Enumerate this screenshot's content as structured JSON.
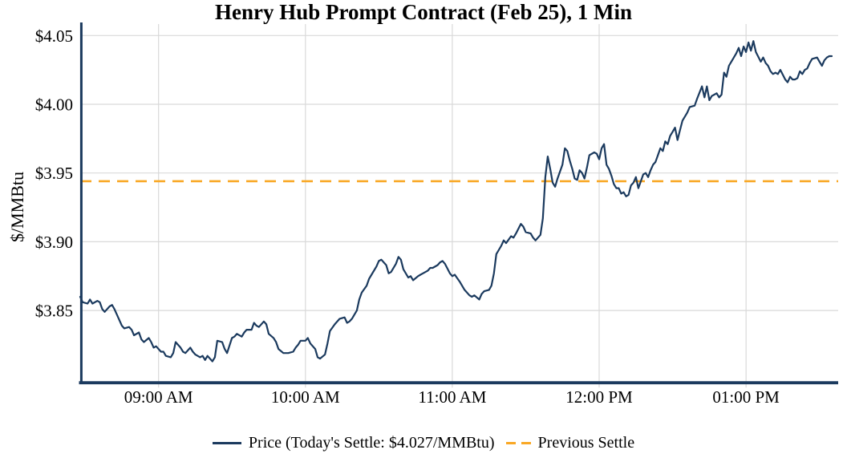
{
  "title": "Henry Hub Prompt Contract (Feb 25), 1 Min",
  "y_axis": {
    "label": "$/MMBtu",
    "ticks": [
      "$4.05",
      "$4.00",
      "$3.95",
      "$3.90",
      "$3.85"
    ],
    "tick_values": [
      4.05,
      4.0,
      3.95,
      3.9,
      3.85
    ]
  },
  "x_axis": {
    "ticks": [
      "09:00 AM",
      "10:00 AM",
      "11:00 AM",
      "12:00 PM",
      "01:00 PM"
    ],
    "tick_offsets_min": [
      32,
      92,
      152,
      212,
      272
    ],
    "total_minutes": 308,
    "start_time": "08:28 AM",
    "end_time": "01:36 PM"
  },
  "legend": {
    "price_label": "Price (Today's Settle: $4.027/MMBtu)",
    "previous_settle_label": "Previous Settle"
  },
  "colors": {
    "price_line": "#1b3a5e",
    "previous_settle_line": "#f9a825",
    "gridline": "#d9d9d9",
    "axis_spine": "#1b3a5e",
    "text": "#000000",
    "background": "#ffffff"
  },
  "chart_data": {
    "type": "line",
    "title": "Henry Hub Prompt Contract (Feb 25), 1 Min",
    "xlabel": "",
    "ylabel": "$/MMBtu",
    "x_unit": "minutes since 08:28 AM (1-minute data)",
    "x_tick_labels": [
      "09:00 AM",
      "10:00 AM",
      "11:00 AM",
      "12:00 PM",
      "01:00 PM"
    ],
    "y_tick_labels": [
      "$3.85",
      "$3.90",
      "$3.95",
      "$4.00",
      "$4.05"
    ],
    "ylim": [
      3.797,
      4.068
    ],
    "grid": true,
    "legend_position": "bottom",
    "today_settle_price": 4.027,
    "previous_settle_price": 3.944,
    "series": [
      {
        "name": "Price (Today's Settle: $4.027/MMBtu)",
        "type": "line",
        "style": "solid",
        "color": "#1b3a5e",
        "points": [
          [
            0,
            3.86
          ],
          [
            1,
            3.856
          ],
          [
            3,
            3.855
          ],
          [
            4,
            3.858
          ],
          [
            5,
            3.855
          ],
          [
            7,
            3.857
          ],
          [
            8,
            3.856
          ],
          [
            9,
            3.851
          ],
          [
            10,
            3.849
          ],
          [
            12,
            3.853
          ],
          [
            13,
            3.854
          ],
          [
            14,
            3.851
          ],
          [
            16,
            3.843
          ],
          [
            17,
            3.839
          ],
          [
            18,
            3.837
          ],
          [
            20,
            3.838
          ],
          [
            21,
            3.836
          ],
          [
            22,
            3.832
          ],
          [
            24,
            3.834
          ],
          [
            25,
            3.829
          ],
          [
            26,
            3.827
          ],
          [
            28,
            3.83
          ],
          [
            29,
            3.827
          ],
          [
            30,
            3.823
          ],
          [
            31,
            3.824
          ],
          [
            33,
            3.82
          ],
          [
            34,
            3.82
          ],
          [
            35,
            3.817
          ],
          [
            37,
            3.816
          ],
          [
            38,
            3.819
          ],
          [
            39,
            3.827
          ],
          [
            41,
            3.823
          ],
          [
            42,
            3.82
          ],
          [
            43,
            3.819
          ],
          [
            45,
            3.823
          ],
          [
            46,
            3.82
          ],
          [
            47,
            3.818
          ],
          [
            49,
            3.816
          ],
          [
            50,
            3.817
          ],
          [
            51,
            3.814
          ],
          [
            52,
            3.817
          ],
          [
            54,
            3.813
          ],
          [
            55,
            3.816
          ],
          [
            56,
            3.828
          ],
          [
            58,
            3.827
          ],
          [
            59,
            3.822
          ],
          [
            60,
            3.819
          ],
          [
            62,
            3.83
          ],
          [
            63,
            3.831
          ],
          [
            64,
            3.833
          ],
          [
            66,
            3.831
          ],
          [
            67,
            3.834
          ],
          [
            68,
            3.836
          ],
          [
            70,
            3.836
          ],
          [
            71,
            3.841
          ],
          [
            72,
            3.839
          ],
          [
            73,
            3.838
          ],
          [
            75,
            3.842
          ],
          [
            76,
            3.84
          ],
          [
            77,
            3.833
          ],
          [
            79,
            3.83
          ],
          [
            80,
            3.827
          ],
          [
            81,
            3.822
          ],
          [
            83,
            3.819
          ],
          [
            84,
            3.819
          ],
          [
            85,
            3.819
          ],
          [
            87,
            3.82
          ],
          [
            88,
            3.823
          ],
          [
            89,
            3.825
          ],
          [
            90,
            3.828
          ],
          [
            92,
            3.828
          ],
          [
            93,
            3.83
          ],
          [
            94,
            3.826
          ],
          [
            96,
            3.822
          ],
          [
            97,
            3.816
          ],
          [
            98,
            3.815
          ],
          [
            100,
            3.818
          ],
          [
            101,
            3.826
          ],
          [
            102,
            3.835
          ],
          [
            104,
            3.84
          ],
          [
            105,
            3.842
          ],
          [
            106,
            3.844
          ],
          [
            108,
            3.845
          ],
          [
            109,
            3.841
          ],
          [
            110,
            3.842
          ],
          [
            111,
            3.844
          ],
          [
            113,
            3.85
          ],
          [
            114,
            3.858
          ],
          [
            115,
            3.863
          ],
          [
            117,
            3.868
          ],
          [
            118,
            3.873
          ],
          [
            119,
            3.876
          ],
          [
            121,
            3.882
          ],
          [
            122,
            3.886
          ],
          [
            123,
            3.887
          ],
          [
            125,
            3.883
          ],
          [
            126,
            3.877
          ],
          [
            127,
            3.878
          ],
          [
            129,
            3.884
          ],
          [
            130,
            3.889
          ],
          [
            131,
            3.887
          ],
          [
            132,
            3.88
          ],
          [
            134,
            3.874
          ],
          [
            135,
            3.875
          ],
          [
            136,
            3.872
          ],
          [
            138,
            3.875
          ],
          [
            139,
            3.876
          ],
          [
            140,
            3.877
          ],
          [
            142,
            3.879
          ],
          [
            143,
            3.881
          ],
          [
            144,
            3.881
          ],
          [
            146,
            3.883
          ],
          [
            147,
            3.885
          ],
          [
            148,
            3.886
          ],
          [
            149,
            3.884
          ],
          [
            151,
            3.877
          ],
          [
            152,
            3.875
          ],
          [
            153,
            3.876
          ],
          [
            155,
            3.871
          ],
          [
            156,
            3.868
          ],
          [
            157,
            3.865
          ],
          [
            159,
            3.861
          ],
          [
            160,
            3.86
          ],
          [
            161,
            3.861
          ],
          [
            163,
            3.858
          ],
          [
            164,
            3.862
          ],
          [
            165,
            3.864
          ],
          [
            167,
            3.865
          ],
          [
            168,
            3.868
          ],
          [
            169,
            3.877
          ],
          [
            170,
            3.891
          ],
          [
            172,
            3.897
          ],
          [
            173,
            3.901
          ],
          [
            174,
            3.899
          ],
          [
            176,
            3.904
          ],
          [
            177,
            3.903
          ],
          [
            178,
            3.906
          ],
          [
            180,
            3.913
          ],
          [
            181,
            3.911
          ],
          [
            182,
            3.907
          ],
          [
            184,
            3.906
          ],
          [
            185,
            3.903
          ],
          [
            186,
            3.901
          ],
          [
            188,
            3.905
          ],
          [
            189,
            3.917
          ],
          [
            190,
            3.947
          ],
          [
            191,
            3.962
          ],
          [
            192,
            3.953
          ],
          [
            193,
            3.943
          ],
          [
            194,
            3.94
          ],
          [
            195,
            3.946
          ],
          [
            197,
            3.956
          ],
          [
            198,
            3.968
          ],
          [
            199,
            3.966
          ],
          [
            200,
            3.959
          ],
          [
            201,
            3.953
          ],
          [
            202,
            3.946
          ],
          [
            203,
            3.945
          ],
          [
            204,
            3.952
          ],
          [
            205,
            3.95
          ],
          [
            206,
            3.946
          ],
          [
            207,
            3.954
          ],
          [
            208,
            3.963
          ],
          [
            210,
            3.965
          ],
          [
            211,
            3.964
          ],
          [
            212,
            3.96
          ],
          [
            213,
            3.968
          ],
          [
            214,
            3.971
          ],
          [
            215,
            3.956
          ],
          [
            216,
            3.953
          ],
          [
            217,
            3.948
          ],
          [
            218,
            3.942
          ],
          [
            219,
            3.939
          ],
          [
            220,
            3.939
          ],
          [
            221,
            3.935
          ],
          [
            222,
            3.936
          ],
          [
            223,
            3.933
          ],
          [
            224,
            3.934
          ],
          [
            225,
            3.941
          ],
          [
            226,
            3.943
          ],
          [
            227,
            3.947
          ],
          [
            228,
            3.939
          ],
          [
            230,
            3.949
          ],
          [
            231,
            3.95
          ],
          [
            232,
            3.947
          ],
          [
            233,
            3.952
          ],
          [
            234,
            3.956
          ],
          [
            235,
            3.958
          ],
          [
            236,
            3.963
          ],
          [
            237,
            3.968
          ],
          [
            238,
            3.966
          ],
          [
            239,
            3.973
          ],
          [
            240,
            3.971
          ],
          [
            241,
            3.977
          ],
          [
            242,
            3.98
          ],
          [
            243,
            3.983
          ],
          [
            244,
            3.974
          ],
          [
            245,
            3.981
          ],
          [
            246,
            3.988
          ],
          [
            248,
            3.994
          ],
          [
            249,
            3.998
          ],
          [
            251,
            3.999
          ],
          [
            252,
            4.004
          ],
          [
            254,
            4.013
          ],
          [
            255,
            4.005
          ],
          [
            256,
            4.013
          ],
          [
            257,
            4.003
          ],
          [
            258,
            4.006
          ],
          [
            260,
            4.008
          ],
          [
            261,
            4.005
          ],
          [
            262,
            4.007
          ],
          [
            263,
            4.023
          ],
          [
            264,
            4.02
          ],
          [
            265,
            4.028
          ],
          [
            266,
            4.031
          ],
          [
            267,
            4.034
          ],
          [
            268,
            4.037
          ],
          [
            269,
            4.041
          ],
          [
            270,
            4.035
          ],
          [
            271,
            4.042
          ],
          [
            272,
            4.038
          ],
          [
            273,
            4.045
          ],
          [
            274,
            4.039
          ],
          [
            275,
            4.046
          ],
          [
            276,
            4.038
          ],
          [
            278,
            4.031
          ],
          [
            279,
            4.034
          ],
          [
            280,
            4.03
          ],
          [
            281,
            4.028
          ],
          [
            282,
            4.024
          ],
          [
            283,
            4.022
          ],
          [
            284,
            4.023
          ],
          [
            285,
            4.022
          ],
          [
            286,
            4.025
          ],
          [
            288,
            4.018
          ],
          [
            289,
            4.016
          ],
          [
            290,
            4.02
          ],
          [
            291,
            4.018
          ],
          [
            292,
            4.018
          ],
          [
            293,
            4.019
          ],
          [
            294,
            4.024
          ],
          [
            295,
            4.022
          ],
          [
            296,
            4.025
          ],
          [
            297,
            4.026
          ],
          [
            298,
            4.03
          ],
          [
            299,
            4.033
          ],
          [
            301,
            4.034
          ],
          [
            302,
            4.031
          ],
          [
            303,
            4.028
          ],
          [
            304,
            4.032
          ],
          [
            305,
            4.034
          ],
          [
            306,
            4.035
          ],
          [
            307,
            4.035
          ]
        ]
      },
      {
        "name": "Previous Settle",
        "type": "hline",
        "style": "dashed",
        "color": "#f9a825",
        "value": 3.944
      }
    ]
  }
}
